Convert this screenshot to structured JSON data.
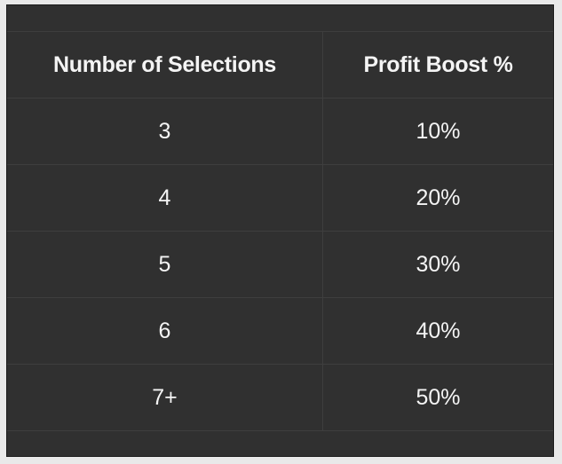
{
  "table": {
    "headers": [
      "Number of Selections",
      "Profit Boost %"
    ],
    "rows": [
      [
        "3",
        "10%"
      ],
      [
        "4",
        "20%"
      ],
      [
        "5",
        "30%"
      ],
      [
        "6",
        "40%"
      ],
      [
        "7+",
        "50%"
      ]
    ]
  },
  "colors": {
    "background": "#303030",
    "text": "#f4f4f4",
    "grid": "#3e3e3e"
  }
}
